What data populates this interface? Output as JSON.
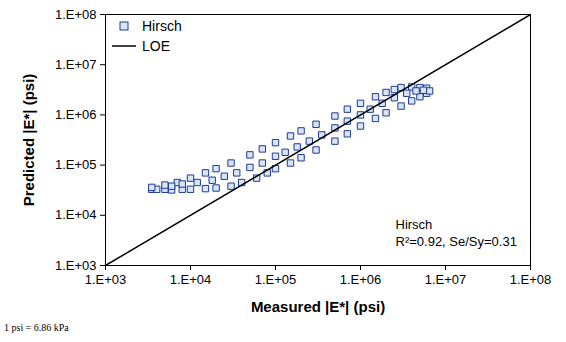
{
  "chart_data": {
    "type": "scatter",
    "x_label": "Measured |E*| (psi)",
    "y_label": "Predicted |E*| (psi)",
    "log": true,
    "grid": false,
    "legend": "top-left",
    "xlim": [
      1000,
      100000000
    ],
    "ylim": [
      1000,
      100000000
    ],
    "xticks": [
      {
        "value": 1000,
        "label": "1.E+03"
      },
      {
        "value": 10000,
        "label": "1.E+04"
      },
      {
        "value": 100000,
        "label": "1.E+05"
      },
      {
        "value": 1000000,
        "label": "1.E+06"
      },
      {
        "value": 10000000,
        "label": "1.E+07"
      },
      {
        "value": 100000000,
        "label": "1.E+08"
      }
    ],
    "yticks": [
      {
        "value": 1000,
        "label": "1.E+03"
      },
      {
        "value": 10000,
        "label": "1.E+04"
      },
      {
        "value": 100000,
        "label": "1.E+05"
      },
      {
        "value": 1000000,
        "label": "1.E+06"
      },
      {
        "value": 10000000,
        "label": "1.E+07"
      },
      {
        "value": 100000000,
        "label": "1.E+08"
      }
    ],
    "annotations": [
      "Hirsch",
      "R²=0.92, Se/Sy=0.31"
    ],
    "note": "1 psi = 6.86 kPa",
    "series": [
      {
        "name": "Hirsch",
        "type": "scatter",
        "marker": "square",
        "color": "#1f3a93",
        "x": [
          3500,
          4000,
          5000,
          6000,
          8000,
          10000,
          15000,
          20000,
          30000,
          40000,
          60000,
          80000,
          100000,
          150000,
          200000,
          300000,
          500000,
          700000,
          1000000,
          1500000,
          2000000,
          3000000,
          4000000,
          5000000,
          6000000,
          3500,
          5000,
          7000,
          10000,
          15000,
          20000,
          30000,
          50000,
          70000,
          100000,
          150000,
          200000,
          300000,
          500000,
          700000,
          1000000,
          1500000,
          2000000,
          2500000,
          3000000,
          4000000,
          5000000,
          6000000,
          6500000,
          6000,
          8000,
          12000,
          18000,
          25000,
          35000,
          50000,
          70000,
          100000,
          130000,
          180000,
          250000,
          350000,
          500000,
          700000,
          1000000,
          1300000,
          1800000,
          2500000,
          3500000,
          4500000,
          5500000
        ],
        "y": [
          33000,
          33000,
          33000,
          32000,
          33000,
          33000,
          34000,
          35000,
          38000,
          45000,
          55000,
          70000,
          85000,
          110000,
          140000,
          200000,
          300000,
          420000,
          600000,
          850000,
          1100000,
          1500000,
          1900000,
          2300000,
          2700000,
          36000,
          40000,
          45000,
          55000,
          70000,
          85000,
          110000,
          160000,
          210000,
          280000,
          380000,
          480000,
          650000,
          950000,
          1300000,
          1700000,
          2300000,
          2800000,
          3200000,
          3500000,
          3600000,
          3500000,
          3400000,
          3000000,
          38000,
          42000,
          45000,
          50000,
          60000,
          70000,
          90000,
          110000,
          150000,
          180000,
          230000,
          300000,
          400000,
          550000,
          750000,
          1000000,
          1300000,
          1700000,
          2200000,
          2700000,
          3000000,
          3100000
        ]
      },
      {
        "name": "LOE",
        "type": "line",
        "line_style": "solid",
        "color": "#000000",
        "x": [
          1000,
          100000000
        ],
        "y": [
          1000,
          100000000
        ]
      }
    ]
  }
}
